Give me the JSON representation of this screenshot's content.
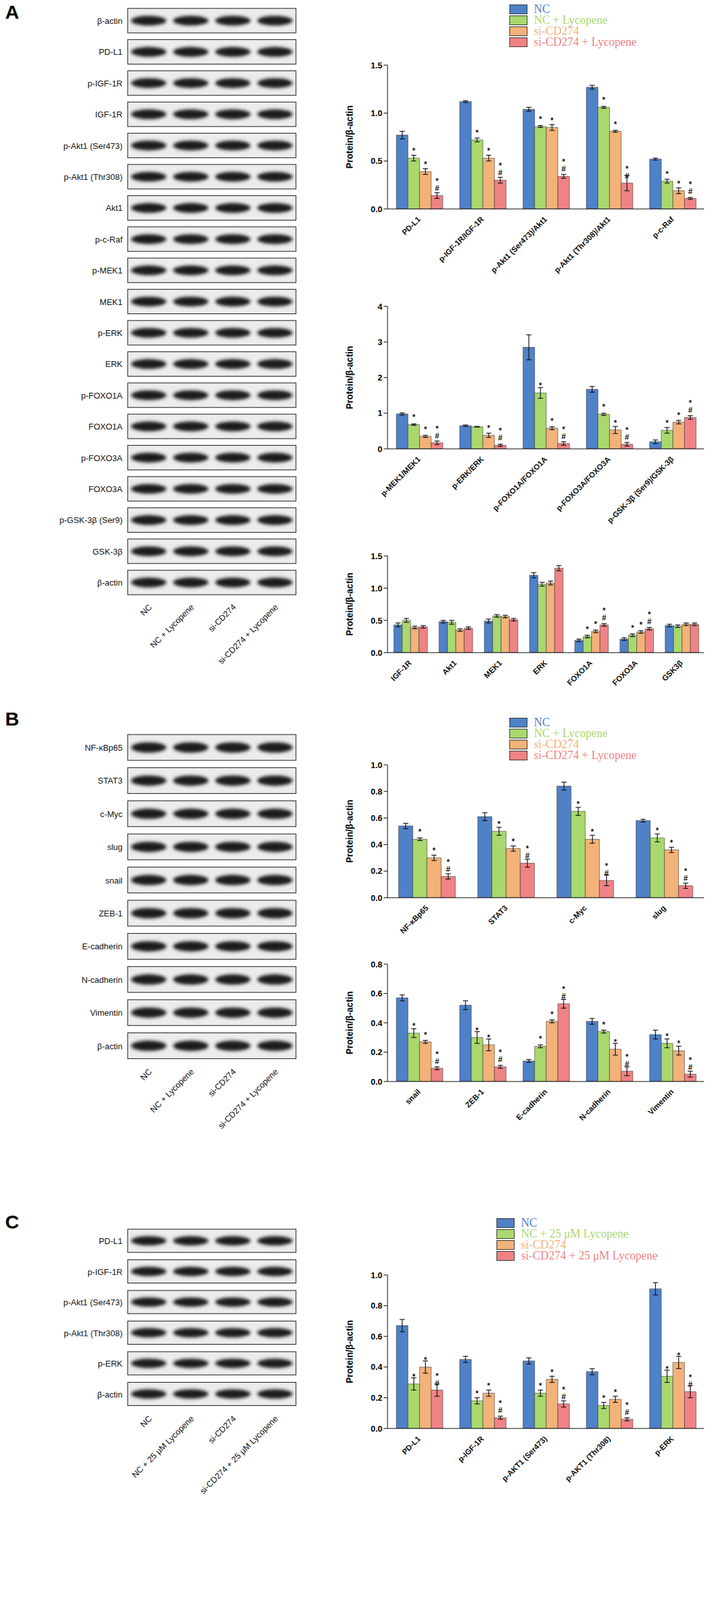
{
  "panels": [
    {
      "label": "A",
      "blot": {
        "rows": [
          "β-actin",
          "PD-L1",
          "p-IGF-1R",
          "IGF-1R",
          "p-Akt1 (Ser473)",
          "p-Akt1 (Thr308)",
          "Akt1",
          "p-c-Raf",
          "p-MEK1",
          "MEK1",
          "p-ERK",
          "ERK",
          "p-FOXO1A",
          "FOXO1A",
          "p-FOXO3A",
          "FOXO3A",
          "p-GSK-3β (Ser9)",
          "GSK-3β",
          "β-actin"
        ],
        "lanes": [
          "NC",
          "NC + Lycopene",
          "si-CD274",
          "si-CD274 + Lycopene"
        ]
      }
    },
    {
      "label": "B",
      "blot": {
        "rows": [
          "NF-κBp65",
          "STAT3",
          "c-Myc",
          "slug",
          "snail",
          "ZEB-1",
          "E-cadherin",
          "N-cadherin",
          "Vimentin",
          "β-actin"
        ],
        "lanes": [
          "NC",
          "NC + Lycopene",
          "si-CD274",
          "si-CD274 + Lycopene"
        ]
      }
    },
    {
      "label": "C",
      "blot": {
        "rows": [
          "PD-L1",
          "p-IGF-1R",
          "p-Akt1 (Ser473)",
          "p-Akt1 (Thr308)",
          "p-ERK",
          "β-actin"
        ],
        "lanes": [
          "NC",
          "NC + 25 μM Lycopene",
          "si-CD274",
          "si-CD274 + 25 μM Lycopene"
        ]
      }
    }
  ],
  "chart_data": [
    {
      "type": "bar",
      "y_label": "Protein/β-actin",
      "legend": "top right",
      "categories": [
        "PD-L1",
        "p-IGF-1R/IGF-1R",
        "p-Akt1 (Ser473)/Akt1",
        "p-Akt1 (Thr308)/Akt1",
        "p-c-Raf"
      ],
      "ylim": [
        0,
        1.5
      ],
      "yticks": [
        {
          "value": 0,
          "label": "0.0"
        },
        {
          "value": 0.5,
          "label": "0.5"
        },
        {
          "value": 1,
          "label": "1.0"
        },
        {
          "value": 1.5,
          "label": "1.5"
        }
      ],
      "series": [
        {
          "name": "NC",
          "color": "#4f81c7",
          "values": [
            0.77,
            1.12,
            1.04,
            1.27,
            0.52
          ],
          "errors": [
            0.04,
            0.01,
            0.02,
            0.02,
            0.01
          ],
          "significance": [
            null,
            null,
            null,
            null,
            null
          ]
        },
        {
          "name": "NC + Lycopene",
          "color": "#a9d86e",
          "values": [
            0.53,
            0.72,
            0.86,
            1.06,
            0.29
          ],
          "errors": [
            0.03,
            0.02,
            0.01,
            0.01,
            0.02
          ],
          "significance": [
            "*",
            "*",
            "*",
            "*",
            "*"
          ]
        },
        {
          "name": "si-CD274",
          "color": "#f2b279",
          "values": [
            0.39,
            0.53,
            0.85,
            0.81,
            0.19
          ],
          "errors": [
            0.03,
            0.03,
            0.03,
            0.01,
            0.03
          ],
          "significance": [
            "*",
            "*",
            "*",
            "*",
            "*"
          ]
        },
        {
          "name": "si-CD274 + Lycopene",
          "color": "#ef8385",
          "values": [
            0.14,
            0.3,
            0.34,
            0.27,
            0.11
          ],
          "errors": [
            0.03,
            0.03,
            0.02,
            0.08,
            0.01
          ],
          "significance": [
            "*#",
            "*#",
            "*#",
            "*#",
            "*#"
          ]
        }
      ]
    },
    {
      "type": "bar",
      "y_label": "Protein/β-actin",
      "categories": [
        "p-MEK1/MEK1",
        "p-ERK/ERK",
        "p-FOXO1A/FOXO1A",
        "p-FOXO3A/FOXO3A",
        "p-GSK-3β (Ser9)/GSK-3β"
      ],
      "ylim": [
        0,
        4
      ],
      "yticks": [
        0,
        1,
        2,
        3,
        4
      ],
      "series": [
        {
          "name": "NC",
          "color": "#4f81c7",
          "values": [
            0.98,
            0.65,
            2.85,
            1.67,
            0.2
          ],
          "errors": [
            0.03,
            0.02,
            0.35,
            0.08,
            0.05
          ],
          "significance": [
            null,
            null,
            null,
            null,
            null
          ]
        },
        {
          "name": "NC + Lycopene",
          "color": "#a9d86e",
          "values": [
            0.68,
            0.62,
            1.57,
            0.97,
            0.52
          ],
          "errors": [
            0.02,
            0.01,
            0.15,
            0.03,
            0.08
          ],
          "significance": [
            "*",
            null,
            "*",
            "*",
            "*"
          ]
        },
        {
          "name": "si-CD274",
          "color": "#f2b279",
          "values": [
            0.35,
            0.38,
            0.58,
            0.53,
            0.75
          ],
          "errors": [
            0.03,
            0.06,
            0.04,
            0.1,
            0.05
          ],
          "significance": [
            "*",
            "*",
            "*",
            "*",
            "*"
          ]
        },
        {
          "name": "si-CD274 + Lycopene",
          "color": "#ef8385",
          "values": [
            0.17,
            0.1,
            0.15,
            0.13,
            0.88
          ],
          "errors": [
            0.05,
            0.03,
            0.05,
            0.05,
            0.05
          ],
          "significance": [
            "*#",
            "*#",
            "*#",
            "*#",
            "*#"
          ]
        }
      ]
    },
    {
      "type": "bar",
      "y_label": "Protein/β-actin",
      "categories": [
        "IGF-1R",
        "Akt1",
        "MEK1",
        "ERK",
        "FOXO1A",
        "FOXO3A",
        "GSK3β"
      ],
      "ylim": [
        0,
        1.5
      ],
      "yticks": [
        {
          "value": 0,
          "label": "0.0"
        },
        {
          "value": 0.5,
          "label": "0.5"
        },
        {
          "value": 1,
          "label": "1.0"
        },
        {
          "value": 1.5,
          "label": "1.5"
        }
      ],
      "series": [
        {
          "name": "NC",
          "color": "#4f81c7",
          "values": [
            0.43,
            0.48,
            0.49,
            1.2,
            0.19,
            0.21,
            0.42
          ],
          "errors": [
            0.03,
            0.02,
            0.03,
            0.04,
            0.02,
            0.02,
            0.02
          ],
          "significance": [
            null,
            null,
            null,
            null,
            null,
            null,
            null
          ]
        },
        {
          "name": "NC + Lycopene",
          "color": "#a9d86e",
          "values": [
            0.5,
            0.47,
            0.57,
            1.06,
            0.25,
            0.27,
            0.41
          ],
          "errors": [
            0.03,
            0.03,
            0.02,
            0.03,
            0.02,
            0.02,
            0.02
          ],
          "significance": [
            null,
            null,
            null,
            null,
            "*",
            "*",
            null
          ]
        },
        {
          "name": "si-CD274",
          "color": "#f2b279",
          "values": [
            0.39,
            0.35,
            0.56,
            1.08,
            0.33,
            0.32,
            0.44
          ],
          "errors": [
            0.02,
            0.02,
            0.02,
            0.03,
            0.02,
            0.02,
            0.02
          ],
          "significance": [
            null,
            null,
            null,
            null,
            "*",
            "*",
            null
          ]
        },
        {
          "name": "si-CD274 + Lycopene",
          "color": "#ef8385",
          "values": [
            0.4,
            0.38,
            0.51,
            1.31,
            0.43,
            0.37,
            0.44
          ],
          "errors": [
            0.02,
            0.02,
            0.02,
            0.04,
            0.02,
            0.02,
            0.02
          ],
          "significance": [
            null,
            null,
            null,
            null,
            "*#",
            "*#",
            null
          ]
        }
      ]
    },
    {
      "type": "bar",
      "y_label": "Protein/β-actin",
      "legend": "top right",
      "categories": [
        "NF-κBp65",
        "STAT3",
        "c-Myc",
        "slug"
      ],
      "ylim": [
        0,
        1
      ],
      "yticks": [
        {
          "value": 0,
          "label": "0.0"
        },
        {
          "value": 0.2,
          "label": "0.2"
        },
        {
          "value": 0.4,
          "label": "0.4"
        },
        {
          "value": 0.6,
          "label": "0.6"
        },
        {
          "value": 0.8,
          "label": "0.8"
        },
        {
          "value": 1,
          "label": "1.0"
        }
      ],
      "series": [
        {
          "name": "NC",
          "color": "#4f81c7",
          "values": [
            0.54,
            0.61,
            0.84,
            0.58
          ],
          "errors": [
            0.02,
            0.03,
            0.03,
            0.01
          ],
          "significance": [
            null,
            null,
            null,
            null
          ]
        },
        {
          "name": "NC + Lycopene",
          "color": "#a9d86e",
          "values": [
            0.44,
            0.5,
            0.65,
            0.45
          ],
          "errors": [
            0.01,
            0.03,
            0.03,
            0.03
          ],
          "significance": [
            "*",
            "*",
            "*",
            "*"
          ]
        },
        {
          "name": "si-CD274",
          "color": "#f2b279",
          "values": [
            0.3,
            0.37,
            0.44,
            0.36
          ],
          "errors": [
            0.02,
            0.02,
            0.03,
            0.02
          ],
          "significance": [
            "*",
            "*",
            "*",
            "*"
          ]
        },
        {
          "name": "si-CD274 + Lycopene",
          "color": "#ef8385",
          "values": [
            0.16,
            0.26,
            0.13,
            0.09
          ],
          "errors": [
            0.02,
            0.03,
            0.04,
            0.02
          ],
          "significance": [
            "*#",
            "*#",
            "*#",
            "*#"
          ]
        }
      ]
    },
    {
      "type": "bar",
      "y_label": "Protein/β-actin",
      "categories": [
        "snail",
        "ZEB-1",
        "E-cadherin",
        "N-cadherin",
        "Vimentin"
      ],
      "ylim": [
        0,
        0.8
      ],
      "yticks": [
        {
          "value": 0,
          "label": "0.0"
        },
        {
          "value": 0.2,
          "label": "0.2"
        },
        {
          "value": 0.4,
          "label": "0.4"
        },
        {
          "value": 0.6,
          "label": "0.6"
        },
        {
          "value": 0.8,
          "label": "0.8"
        }
      ],
      "series": [
        {
          "name": "NC",
          "color": "#4f81c7",
          "values": [
            0.57,
            0.52,
            0.14,
            0.41,
            0.32
          ],
          "errors": [
            0.02,
            0.03,
            0.01,
            0.02,
            0.03
          ],
          "significance": [
            null,
            null,
            null,
            null,
            null
          ]
        },
        {
          "name": "NC + Lycopene",
          "color": "#a9d86e",
          "values": [
            0.33,
            0.3,
            0.24,
            0.34,
            0.26
          ],
          "errors": [
            0.03,
            0.04,
            0.01,
            0.01,
            0.03
          ],
          "significance": [
            "*",
            "*",
            "*",
            "*",
            "*"
          ]
        },
        {
          "name": "si-CD274",
          "color": "#f2b279",
          "values": [
            0.27,
            0.25,
            0.41,
            0.22,
            0.21
          ],
          "errors": [
            0.01,
            0.04,
            0.01,
            0.04,
            0.03
          ],
          "significance": [
            "*",
            "*",
            "*",
            "*",
            "*"
          ]
        },
        {
          "name": "si-CD274 + Lycopene",
          "color": "#ef8385",
          "values": [
            0.09,
            0.1,
            0.53,
            0.07,
            0.05
          ],
          "errors": [
            0.01,
            0.01,
            0.03,
            0.03,
            0.02
          ],
          "significance": [
            "*#",
            "*#",
            "*#",
            "*#",
            "*#"
          ]
        }
      ]
    },
    {
      "type": "bar",
      "y_label": "Protein/β-actin",
      "legend": "top right",
      "categories": [
        "PD-L1",
        "p-IGF-1R",
        "p-AKT1 (Ser473)",
        "p-AKT1 (Thr308)",
        "p-ERK"
      ],
      "ylim": [
        0,
        1
      ],
      "yticks": [
        {
          "value": 0,
          "label": "0.0"
        },
        {
          "value": 0.2,
          "label": "0.2"
        },
        {
          "value": 0.4,
          "label": "0.4"
        },
        {
          "value": 0.6,
          "label": "0.6"
        },
        {
          "value": 0.8,
          "label": "0.8"
        },
        {
          "value": 1,
          "label": "1.0"
        }
      ],
      "series": [
        {
          "name": "NC",
          "color": "#4f81c7",
          "values": [
            0.67,
            0.45,
            0.44,
            0.37,
            0.91
          ],
          "errors": [
            0.04,
            0.02,
            0.02,
            0.02,
            0.04
          ],
          "significance": [
            null,
            null,
            null,
            null,
            null
          ]
        },
        {
          "name": "NC + 25 μM Lycopene",
          "color": "#a9d86e",
          "values": [
            0.29,
            0.18,
            0.23,
            0.15,
            0.34
          ],
          "errors": [
            0.04,
            0.02,
            0.02,
            0.02,
            0.04
          ],
          "significance": [
            "*",
            "*",
            "*",
            "*",
            "*"
          ]
        },
        {
          "name": "si-CD274",
          "color": "#f2b279",
          "values": [
            0.4,
            0.23,
            0.32,
            0.19,
            0.43
          ],
          "errors": [
            0.04,
            0.02,
            0.02,
            0.02,
            0.04
          ],
          "significance": [
            "*",
            "*",
            "*",
            "*",
            "*"
          ]
        },
        {
          "name": "si-CD274 + 25 μM Lycopene",
          "color": "#ef8385",
          "values": [
            0.25,
            0.07,
            0.16,
            0.06,
            0.24
          ],
          "errors": [
            0.04,
            0.01,
            0.02,
            0.01,
            0.04
          ],
          "significance": [
            "*#",
            "*#",
            "*#",
            "*#",
            "*#"
          ]
        }
      ]
    }
  ]
}
